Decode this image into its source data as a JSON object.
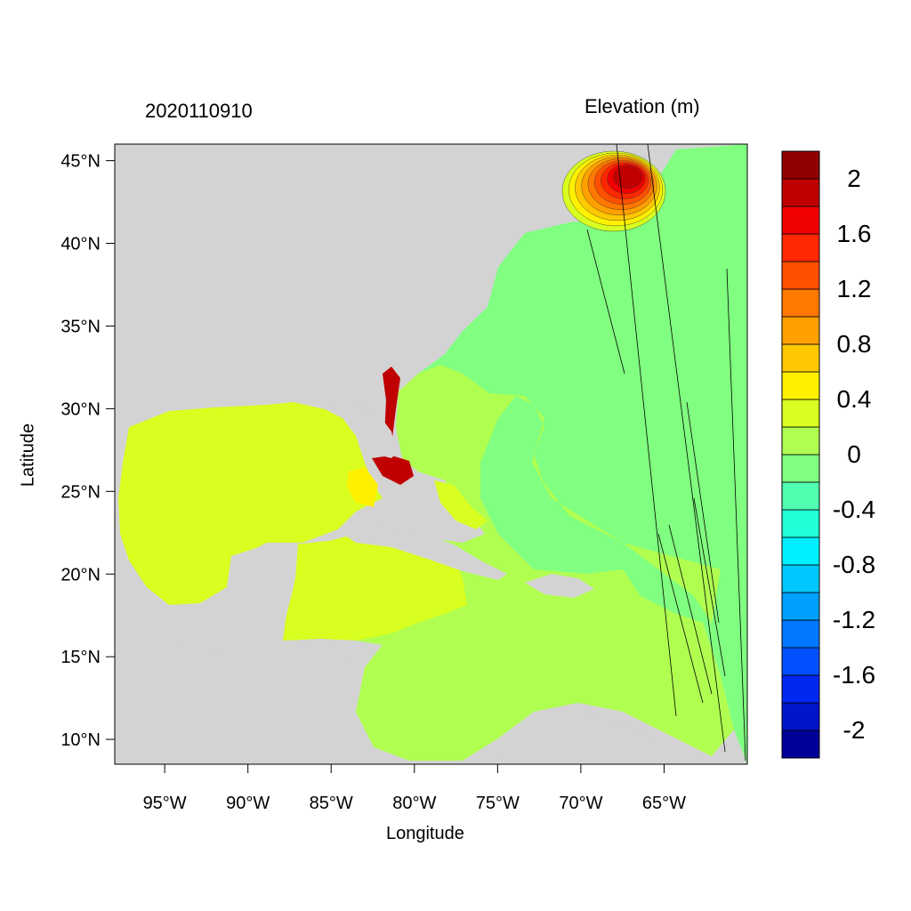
{
  "header": {
    "date_label": "2020110910",
    "units_label": "Elevation (m)"
  },
  "axes": {
    "xlabel": "Longitude",
    "ylabel": "Latitude",
    "xticks": [
      {
        "lon": -95,
        "label": "95°W"
      },
      {
        "lon": -90,
        "label": "90°W"
      },
      {
        "lon": -85,
        "label": "85°W"
      },
      {
        "lon": -80,
        "label": "80°W"
      },
      {
        "lon": -75,
        "label": "75°W"
      },
      {
        "lon": -70,
        "label": "70°W"
      },
      {
        "lon": -65,
        "label": "65°W"
      }
    ],
    "yticks": [
      {
        "lat": 45,
        "label": "45°N"
      },
      {
        "lat": 40,
        "label": "40°N"
      },
      {
        "lat": 35,
        "label": "35°N"
      },
      {
        "lat": 30,
        "label": "30°N"
      },
      {
        "lat": 25,
        "label": "25°N"
      },
      {
        "lat": 20,
        "label": "20°N"
      },
      {
        "lat": 15,
        "label": "15°N"
      },
      {
        "lat": 10,
        "label": "10°N"
      }
    ],
    "lon_range": [
      -98,
      -60
    ],
    "lat_range": [
      8.5,
      46
    ]
  },
  "colorbar": {
    "bins": [
      "#000099",
      "#0014C8",
      "#0028F0",
      "#0050FF",
      "#0078FF",
      "#00A0FF",
      "#00C8FF",
      "#00F0FF",
      "#20FFD8",
      "#50FFB0",
      "#80FF80",
      "#B0FF50",
      "#D8FF20",
      "#FFF000",
      "#FFC800",
      "#FFA000",
      "#FF7800",
      "#FF5000",
      "#FF2800",
      "#F00000",
      "#C00000",
      "#900000"
    ],
    "labels": [
      {
        "value": -2,
        "label": "-2"
      },
      {
        "value": -1.6,
        "label": "-1.6"
      },
      {
        "value": -1.2,
        "label": "-1.2"
      },
      {
        "value": -0.8,
        "label": "-0.8"
      },
      {
        "value": -0.4,
        "label": "-0.4"
      },
      {
        "value": 0,
        "label": "0"
      },
      {
        "value": 0.4,
        "label": "0.4"
      },
      {
        "value": 0.8,
        "label": "0.8"
      },
      {
        "value": 1.2,
        "label": "1.2"
      },
      {
        "value": 1.6,
        "label": "1.6"
      },
      {
        "value": 2,
        "label": "2"
      }
    ]
  },
  "colors": {
    "land": "#D3D3D3",
    "open_ocean": "#80FF80",
    "shelf": "#B0FF50",
    "gulf": "#D8FF20",
    "surge": "#C00000"
  }
}
